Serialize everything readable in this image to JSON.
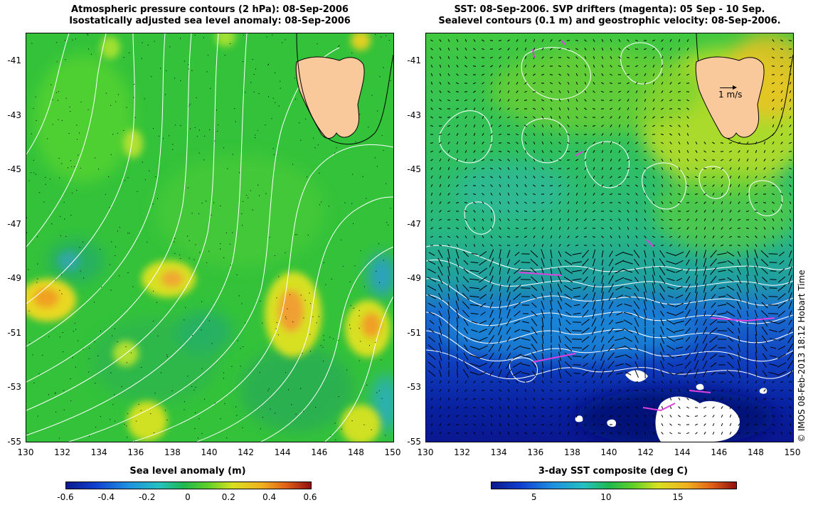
{
  "left_panel": {
    "title_line1": "Atmospheric pressure contours (2 hPa): 08-Sep-2006",
    "title_line2": "Isostatically adjusted sea level anomaly: 08-Sep-2006",
    "y_ticks": [
      "-41",
      "-43",
      "-45",
      "-47",
      "-49",
      "-51",
      "-53",
      "-55"
    ],
    "x_ticks": [
      "130",
      "132",
      "134",
      "136",
      "138",
      "140",
      "142",
      "144",
      "146",
      "148",
      "150"
    ],
    "colorbar": {
      "label": "Sea level anomaly (m)",
      "ticks": [
        "-0.6",
        "-0.4",
        "-0.2",
        "0",
        "0.2",
        "0.4",
        "0.6"
      ],
      "range": [
        -0.6,
        0.6
      ]
    }
  },
  "right_panel": {
    "title_line1": "SST: 08-Sep-2006. SVP drifters (magenta): 05 Sep - 10 Sep.",
    "title_line2": "Sealevel contours (0.1 m) and geostrophic velocity: 08-Sep-2006.",
    "y_ticks": [
      "-41",
      "-43",
      "-45",
      "-47",
      "-49",
      "-51",
      "-53",
      "-55"
    ],
    "x_ticks": [
      "130",
      "132",
      "134",
      "136",
      "138",
      "140",
      "142",
      "144",
      "146",
      "148",
      "150"
    ],
    "velocity_scale_label": "1 m/s",
    "colorbar": {
      "label": "3-day SST composite (deg C)",
      "ticks": [
        "5",
        "10",
        "15"
      ],
      "range": [
        2,
        19
      ]
    }
  },
  "credit": "© IMOS 08-Feb-2013 18:12 Hobart Time",
  "colors": {
    "land": "#f9c89b",
    "contour": "#ffffff",
    "drifter": "#e040e0"
  }
}
